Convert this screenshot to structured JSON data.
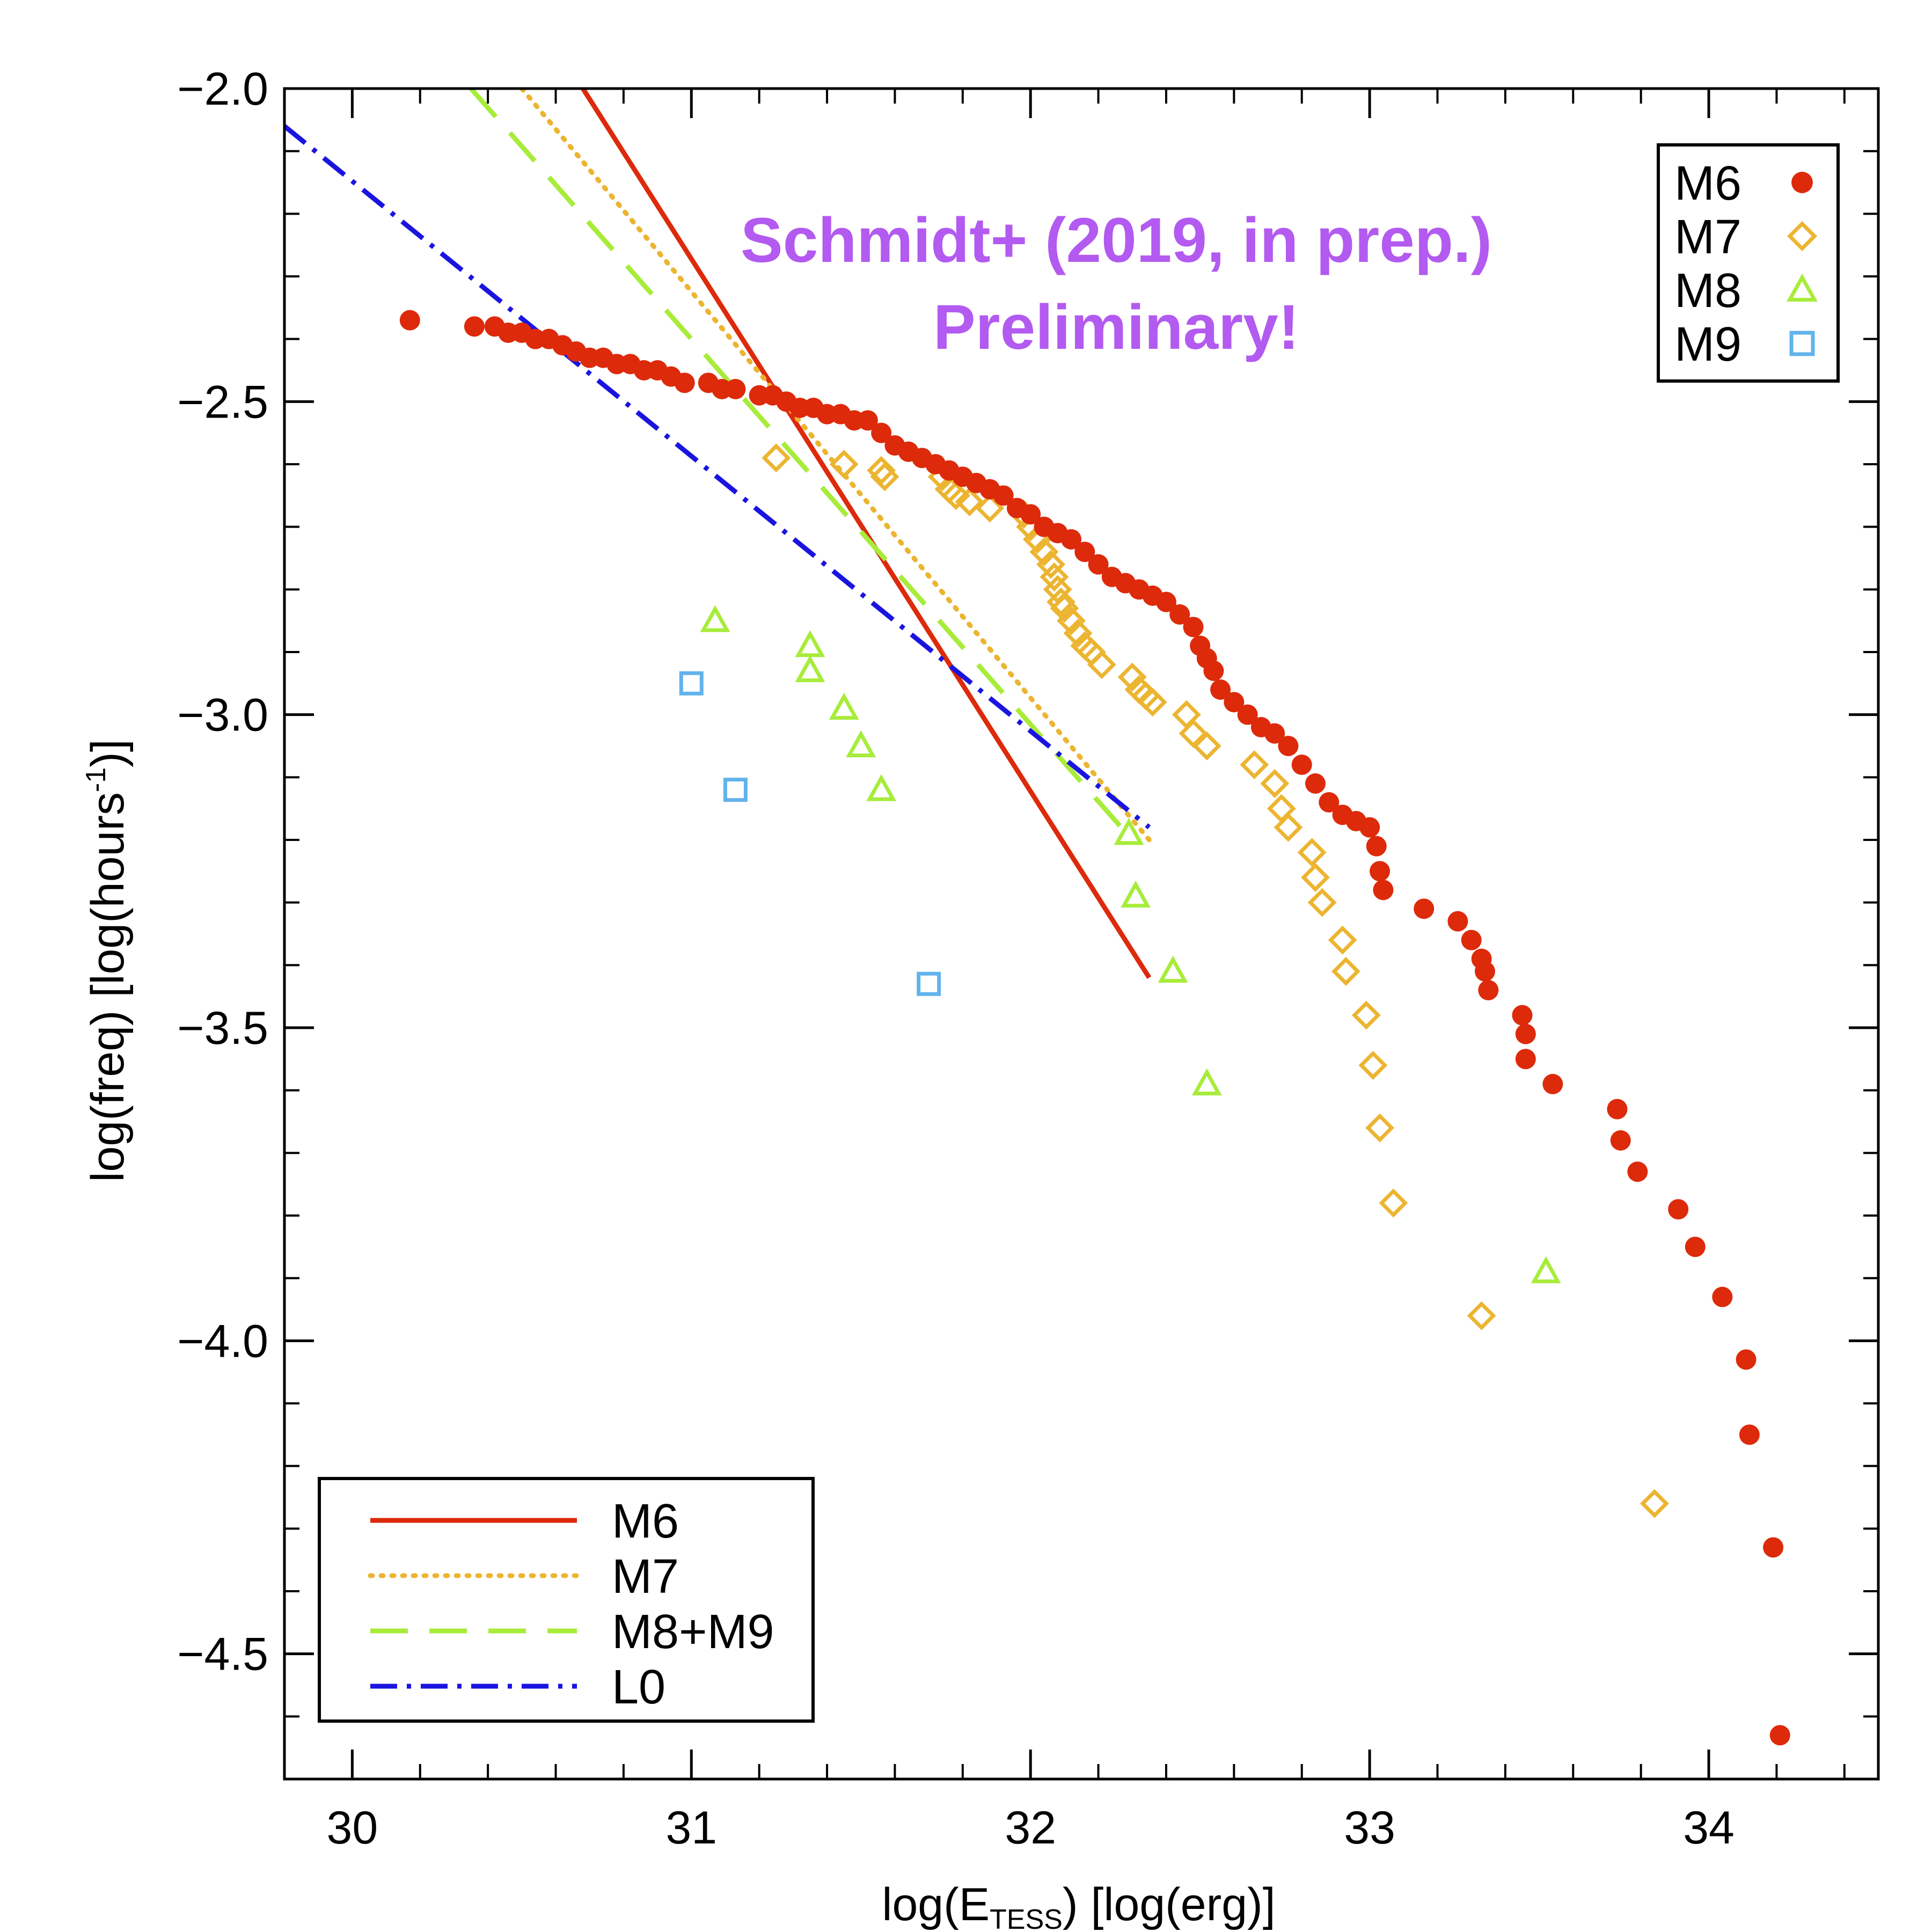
{
  "chart_data": {
    "type": "scatter",
    "xlabel_main": "log(E",
    "xlabel_sub": "TESS",
    "xlabel_tail": ") [log(erg)]",
    "ylabel_main": "log(freq) [log(hours",
    "ylabel_sup": "-1",
    "ylabel_tail": ")]",
    "xlim": [
      29.8,
      34.5
    ],
    "ylim": [
      -4.7,
      -2.0
    ],
    "x_ticks": [
      30,
      31,
      32,
      33,
      34
    ],
    "x_tick_labels": [
      "30",
      "31",
      "32",
      "33",
      "34"
    ],
    "y_ticks": [
      -2.0,
      -2.5,
      -3.0,
      -3.5,
      -4.0,
      -4.5
    ],
    "y_tick_labels": [
      "−2.0",
      "−2.5",
      "−3.0",
      "−3.5",
      "−4.0",
      "−4.5"
    ],
    "annotation": {
      "line1": "Schmidt+ (2019, in prep.)",
      "line2": "Preliminary!",
      "color": "#b35af0"
    },
    "legend_points": {
      "position": "top-right",
      "entries": [
        {
          "label": "M6",
          "marker": "filled-circle",
          "color": "#dd2a0b"
        },
        {
          "label": "M7",
          "marker": "open-diamond",
          "color": "#ecb531"
        },
        {
          "label": "M8",
          "marker": "open-triangle",
          "color": "#a8ec3b"
        },
        {
          "label": "M9",
          "marker": "open-square",
          "color": "#62b3ec"
        }
      ]
    },
    "legend_lines": {
      "position": "bottom-left",
      "entries": [
        {
          "label": "M6",
          "style": "solid",
          "color": "#dd2a0b"
        },
        {
          "label": "M7",
          "style": "dotted",
          "color": "#ecb531"
        },
        {
          "label": "M8+M9",
          "style": "dashed",
          "color": "#a8ec3b"
        },
        {
          "label": "L0",
          "style": "dashdot",
          "color": "#1a14e0"
        }
      ]
    },
    "fit_lines": [
      {
        "name": "M6",
        "style": "solid",
        "color": "#dd2a0b",
        "x": [
          30.68,
          32.35
        ],
        "y": [
          -2.0,
          -3.42
        ]
      },
      {
        "name": "M7",
        "style": "dotted",
        "color": "#ecb531",
        "x": [
          30.5,
          32.35
        ],
        "y": [
          -2.0,
          -3.2
        ]
      },
      {
        "name": "M8+M9",
        "style": "dashed",
        "color": "#a8ec3b",
        "x": [
          30.35,
          32.3
        ],
        "y": [
          -2.0,
          -3.2
        ]
      },
      {
        "name": "L0",
        "style": "dashdot",
        "color": "#1a14e0",
        "x": [
          29.8,
          32.35
        ],
        "y": [
          -2.06,
          -3.18
        ]
      }
    ],
    "series": [
      {
        "name": "M6",
        "marker": "filled-circle",
        "color": "#dd2a0b",
        "x": [
          30.17,
          30.36,
          30.42,
          30.46,
          30.5,
          30.54,
          30.58,
          30.62,
          30.66,
          30.7,
          30.74,
          30.78,
          30.82,
          30.86,
          30.9,
          30.94,
          30.98,
          31.05,
          31.09,
          31.13,
          31.2,
          31.24,
          31.28,
          31.32,
          31.36,
          31.4,
          31.44,
          31.48,
          31.52,
          31.56,
          31.6,
          31.64,
          31.68,
          31.72,
          31.76,
          31.8,
          31.84,
          31.88,
          31.92,
          31.96,
          32.0,
          32.04,
          32.08,
          32.12,
          32.16,
          32.2,
          32.24,
          32.28,
          32.32,
          32.36,
          32.4,
          32.44,
          32.48,
          32.5,
          32.52,
          32.54,
          32.56,
          32.6,
          32.64,
          32.68,
          32.72,
          32.76,
          32.8,
          32.84,
          32.88,
          32.92,
          32.96,
          33.0,
          33.02,
          33.03,
          33.04,
          33.16,
          33.26,
          33.3,
          33.33,
          33.34,
          33.35,
          33.45,
          33.46,
          33.46,
          33.54,
          33.73,
          33.74,
          33.79,
          33.91,
          33.96,
          34.04,
          34.11,
          34.12,
          34.19,
          34.21
        ],
        "y": [
          -2.37,
          -2.38,
          -2.38,
          -2.39,
          -2.39,
          -2.4,
          -2.4,
          -2.41,
          -2.42,
          -2.43,
          -2.43,
          -2.44,
          -2.44,
          -2.45,
          -2.45,
          -2.46,
          -2.47,
          -2.47,
          -2.48,
          -2.48,
          -2.49,
          -2.49,
          -2.5,
          -2.51,
          -2.51,
          -2.52,
          -2.52,
          -2.53,
          -2.53,
          -2.55,
          -2.57,
          -2.58,
          -2.59,
          -2.6,
          -2.61,
          -2.62,
          -2.63,
          -2.64,
          -2.65,
          -2.67,
          -2.68,
          -2.7,
          -2.71,
          -2.72,
          -2.74,
          -2.76,
          -2.78,
          -2.79,
          -2.8,
          -2.81,
          -2.82,
          -2.84,
          -2.86,
          -2.89,
          -2.91,
          -2.93,
          -2.96,
          -2.98,
          -3.0,
          -3.02,
          -3.03,
          -3.05,
          -3.08,
          -3.11,
          -3.14,
          -3.16,
          -3.17,
          -3.18,
          -3.21,
          -3.25,
          -3.28,
          -3.31,
          -3.33,
          -3.36,
          -3.39,
          -3.41,
          -3.44,
          -3.48,
          -3.51,
          -3.55,
          -3.59,
          -3.63,
          -3.68,
          -3.73,
          -3.79,
          -3.85,
          -3.93,
          -4.03,
          -4.15,
          -4.33,
          -4.63
        ]
      },
      {
        "name": "M7",
        "marker": "open-diamond",
        "color": "#ecb531",
        "x": [
          31.25,
          31.45,
          31.56,
          31.57,
          31.74,
          31.76,
          31.78,
          31.82,
          31.88,
          31.98,
          32.0,
          32.02,
          32.04,
          32.06,
          32.07,
          32.08,
          32.09,
          32.1,
          32.12,
          32.14,
          32.16,
          32.18,
          32.21,
          32.3,
          32.32,
          32.34,
          32.36,
          32.46,
          32.48,
          32.52,
          32.66,
          32.72,
          32.74,
          32.76,
          32.83,
          32.84,
          32.86,
          32.92,
          32.93,
          32.99,
          33.01,
          33.03,
          33.07,
          33.33,
          33.84
        ],
        "y": [
          -2.59,
          -2.6,
          -2.61,
          -2.62,
          -2.62,
          -2.64,
          -2.65,
          -2.66,
          -2.67,
          -2.68,
          -2.7,
          -2.72,
          -2.74,
          -2.76,
          -2.78,
          -2.8,
          -2.82,
          -2.83,
          -2.85,
          -2.87,
          -2.89,
          -2.9,
          -2.92,
          -2.94,
          -2.96,
          -2.97,
          -2.98,
          -3.0,
          -3.03,
          -3.05,
          -3.08,
          -3.11,
          -3.15,
          -3.18,
          -3.22,
          -3.26,
          -3.3,
          -3.36,
          -3.41,
          -3.48,
          -3.56,
          -3.66,
          -3.78,
          -3.96,
          -4.26
        ]
      },
      {
        "name": "M8",
        "marker": "open-triangle",
        "color": "#a8ec3b",
        "x": [
          31.07,
          31.35,
          31.35,
          31.45,
          31.5,
          31.56,
          32.29,
          32.31,
          32.42,
          32.52,
          33.52
        ],
        "y": [
          -2.85,
          -2.89,
          -2.93,
          -2.99,
          -3.05,
          -3.12,
          -3.19,
          -3.29,
          -3.41,
          -3.59,
          -3.89
        ]
      },
      {
        "name": "M9",
        "marker": "open-square",
        "color": "#62b3ec",
        "x": [
          31.0,
          31.13,
          31.7
        ],
        "y": [
          -2.95,
          -3.12,
          -3.43
        ]
      }
    ]
  }
}
